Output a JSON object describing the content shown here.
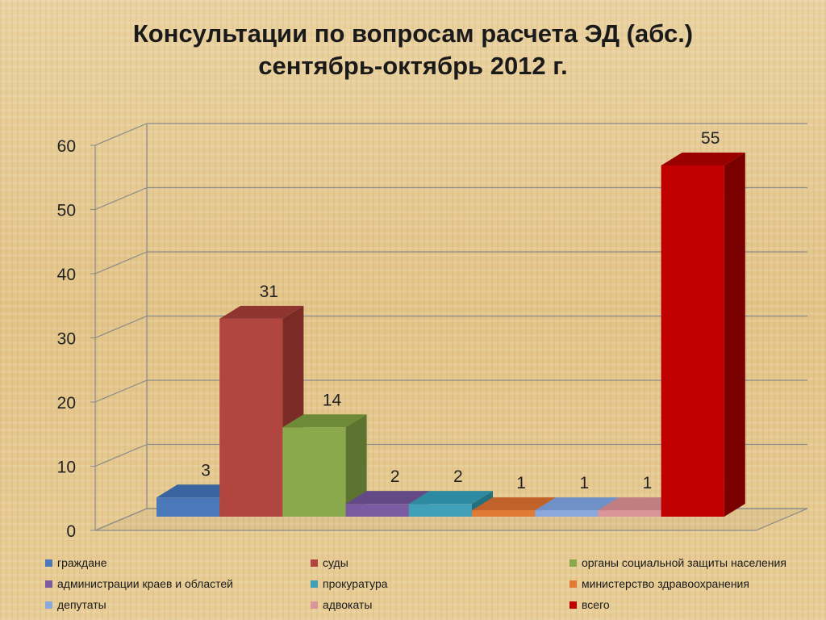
{
  "title_line1": "Консультации по вопросам расчета ЭД (абс.)",
  "title_line2": "сентябрь-октябрь 2012 г.",
  "chart_data": {
    "type": "bar",
    "categories": [
      "граждане",
      "суды",
      "органы социальной защиты населения",
      "администрации краев и областей",
      "прокуратура",
      "министерство здравоохранения",
      "депутаты",
      "адвокаты",
      "всего"
    ],
    "values": [
      3,
      31,
      14,
      2,
      2,
      1,
      1,
      1,
      55
    ],
    "data_labels": [
      "3",
      "31",
      "14",
      "2",
      "2",
      "1",
      "1",
      "1",
      "55"
    ],
    "ylim": [
      0,
      60
    ],
    "yticks": [
      "0",
      "10",
      "20",
      "30",
      "40",
      "50",
      "60"
    ],
    "grid": true,
    "legend_position": "bottom",
    "colors": [
      "#4a78b8",
      "#b0463f",
      "#8aa84c",
      "#7a5aa0",
      "#3fa0b8",
      "#e07a34",
      "#8aa8dc",
      "#d9959a",
      "#c00000"
    ],
    "side_colors": [
      "#2f5489",
      "#7a2b26",
      "#5c7430",
      "#523a6e",
      "#237080",
      "#a05020",
      "#5e7cae",
      "#a8666b",
      "#7a0000"
    ],
    "top_colors": [
      "#3a64a0",
      "#8f3530",
      "#6d8a38",
      "#634a86",
      "#2e8aa0",
      "#c0622a",
      "#7090c8",
      "#c07d82",
      "#9a0000"
    ]
  }
}
